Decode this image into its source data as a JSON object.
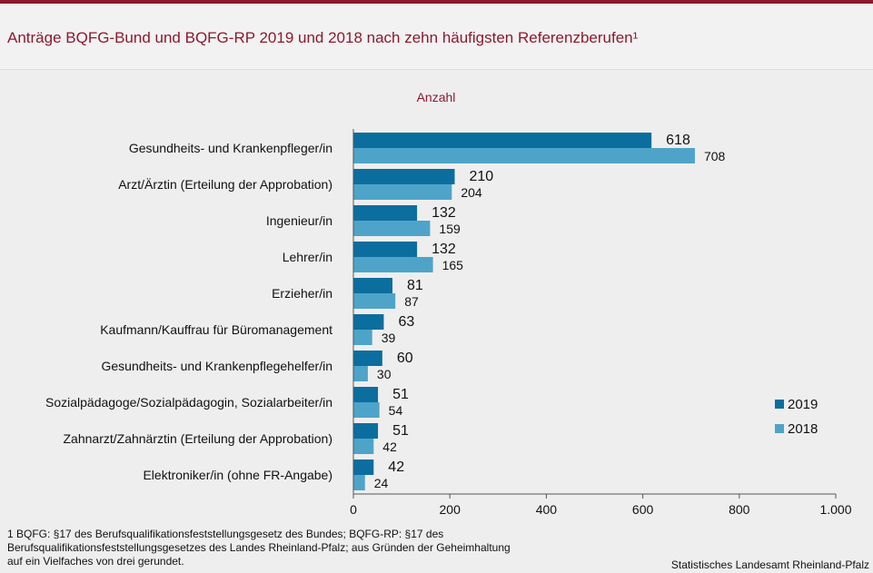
{
  "page": {
    "title": "Anträge BQFG-Bund und BQFG-RP 2019 und 2018 nach zehn häufigsten Referenzberufen¹",
    "footnote_lines": [
      "1  BQFG: §17 des Berufsqualifikationsfeststellungsgesetz  des Bundes;  BQFG-RP: §17 des",
      "Berufsqualifikationsfeststellungsgesetzes  des Landes Rheinland-Pfalz;  aus Gründen  der Geheimhaltung",
      "auf ein Vielfaches von drei gerundet."
    ],
    "source": "Statistisches Landesamt Rheinland-Pfalz"
  },
  "chart_data": {
    "type": "bar",
    "orientation": "horizontal",
    "unit_label": "Anzahl",
    "categories": [
      "Gesundheits- und Krankenpfleger/in",
      "Arzt/Ärztin (Erteilung der Approbation)",
      "Ingenieur/in",
      "Lehrer/in",
      "Erzieher/in",
      "Kaufmann/Kauffrau für Büromanagement",
      "Gesundheits- und Krankenpflegehelfer/in",
      "Sozialpädagoge/Sozialpädagogin, Sozialarbeiter/in",
      "Zahnarzt/Zahnärztin (Erteilung der Approbation)",
      "Elektroniker/in (ohne FR-Angabe)"
    ],
    "series": [
      {
        "name": "2019",
        "color": "#0b6e9e",
        "values": [
          618,
          210,
          132,
          132,
          81,
          63,
          60,
          51,
          51,
          42
        ]
      },
      {
        "name": "2018",
        "color": "#4ea4c8",
        "values": [
          708,
          204,
          159,
          165,
          87,
          39,
          30,
          54,
          42,
          24
        ]
      }
    ],
    "xlim": [
      0,
      1000
    ],
    "xticks": [
      0,
      200,
      400,
      600,
      800,
      1000
    ],
    "xtick_labels": [
      "0",
      "200",
      "400",
      "600",
      "800",
      "1.000"
    ],
    "legend_position": "right",
    "grid": false
  }
}
